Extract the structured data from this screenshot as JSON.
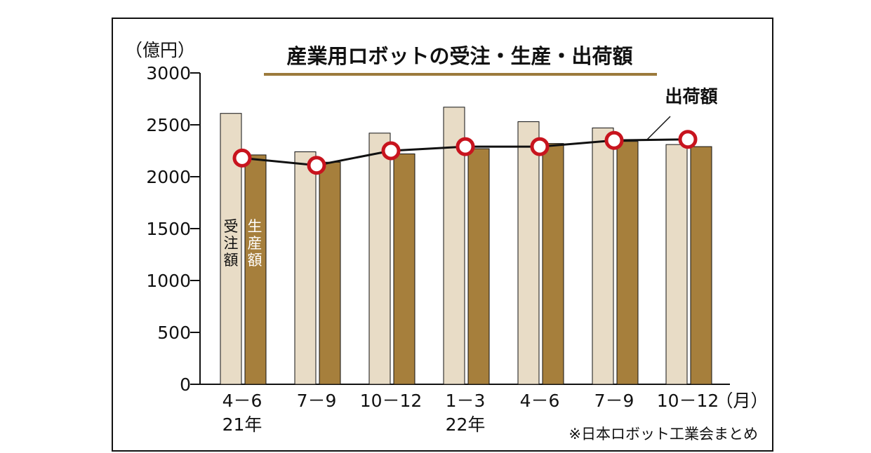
{
  "chart_data": {
    "type": "bar",
    "title": "産業用ロボットの受注・生産・出荷額",
    "y_unit": "（億円）",
    "x_unit": "（月）",
    "ylim": [
      0,
      3000
    ],
    "yticks": [
      "0",
      "500",
      "1000",
      "1500",
      "2000",
      "2500",
      "3000"
    ],
    "ytick_values": [
      0,
      500,
      1000,
      1500,
      2000,
      2500,
      3000
    ],
    "categories": [
      "4－6",
      "7－9",
      "10－12",
      "1－3",
      "4－6",
      "7－9",
      "10－12"
    ],
    "year_labels": [
      "21年",
      "22年"
    ],
    "series": [
      {
        "name": "受注額",
        "kind": "bar",
        "color": "#e8dcc6",
        "values": [
          2610,
          2240,
          2420,
          2670,
          2530,
          2470,
          2310
        ]
      },
      {
        "name": "生産額",
        "kind": "bar",
        "color": "#a67f3c",
        "values": [
          2210,
          2140,
          2220,
          2270,
          2320,
          2340,
          2290
        ]
      },
      {
        "name": "出荷額",
        "kind": "line",
        "color": "#111111",
        "marker_color": "#c8141e",
        "values": [
          2180,
          2110,
          2250,
          2290,
          2290,
          2350,
          2360
        ]
      }
    ],
    "grid": false,
    "source": "※日本ロボット工業会まとめ"
  },
  "labels": {
    "orders": [
      "受",
      "注",
      "額"
    ],
    "production": [
      "生",
      "産",
      "額"
    ],
    "shipments": "出荷額"
  },
  "colors": {
    "frame": "#111111",
    "title_underline": "#9c7a3c"
  }
}
